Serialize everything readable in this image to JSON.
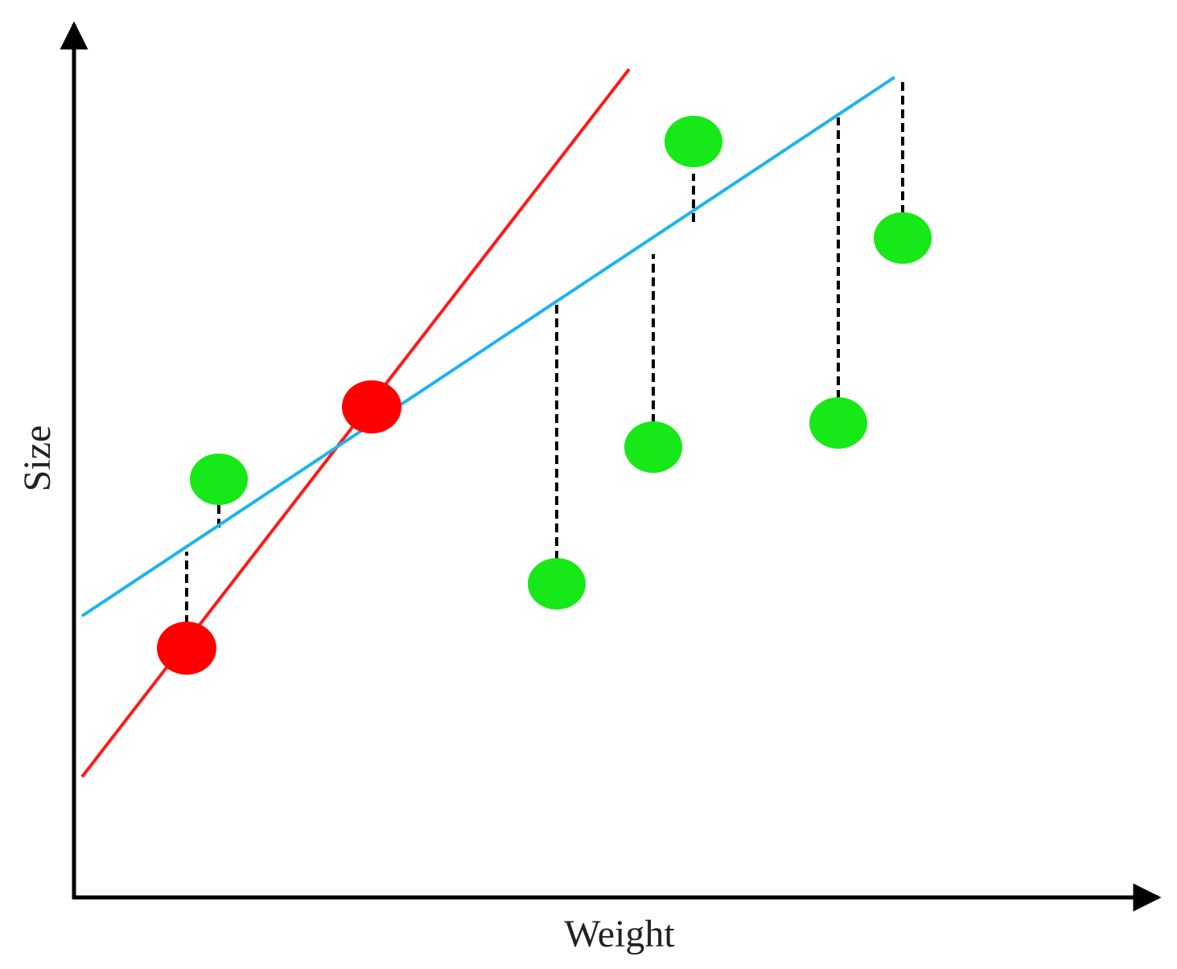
{
  "x_axis_label": "Weight",
  "y_axis_label": "Size",
  "colors": {
    "axis": "#000000",
    "red_line": "#ff1a1a",
    "blue_line": "#1eb4ee",
    "red_point": "#ff0000",
    "green_point": "#17e817",
    "residual": "#000000"
  },
  "red_points": [
    {
      "x": 1.4,
      "y": 3.1
    },
    {
      "x": 3.7,
      "y": 6.1
    }
  ],
  "green_points": [
    {
      "x": 1.8,
      "y": 5.2
    },
    {
      "x": 6.0,
      "y": 3.9
    },
    {
      "x": 7.2,
      "y": 5.6
    },
    {
      "x": 7.7,
      "y": 9.4
    },
    {
      "x": 9.5,
      "y": 5.9
    },
    {
      "x": 10.3,
      "y": 8.2
    }
  ],
  "red_line": {
    "x1": 0.1,
    "y1": 1.5,
    "x2": 6.9,
    "y2": 10.3
  },
  "blue_line": {
    "x1": 0.1,
    "y1": 3.5,
    "x2": 10.2,
    "y2": 10.2
  },
  "residuals": [
    {
      "x": 1.4,
      "y1": 3.4,
      "y2": 4.3
    },
    {
      "x": 1.8,
      "y1": 4.6,
      "y2": 4.9
    },
    {
      "x": 6.0,
      "y1": 4.2,
      "y2": 7.4
    },
    {
      "x": 7.2,
      "y1": 5.9,
      "y2": 8.0
    },
    {
      "x": 7.7,
      "y1": 8.4,
      "y2": 9.0
    },
    {
      "x": 9.5,
      "y1": 6.2,
      "y2": 9.7
    },
    {
      "x": 10.3,
      "y1": 8.5,
      "y2": 10.2
    }
  ]
}
